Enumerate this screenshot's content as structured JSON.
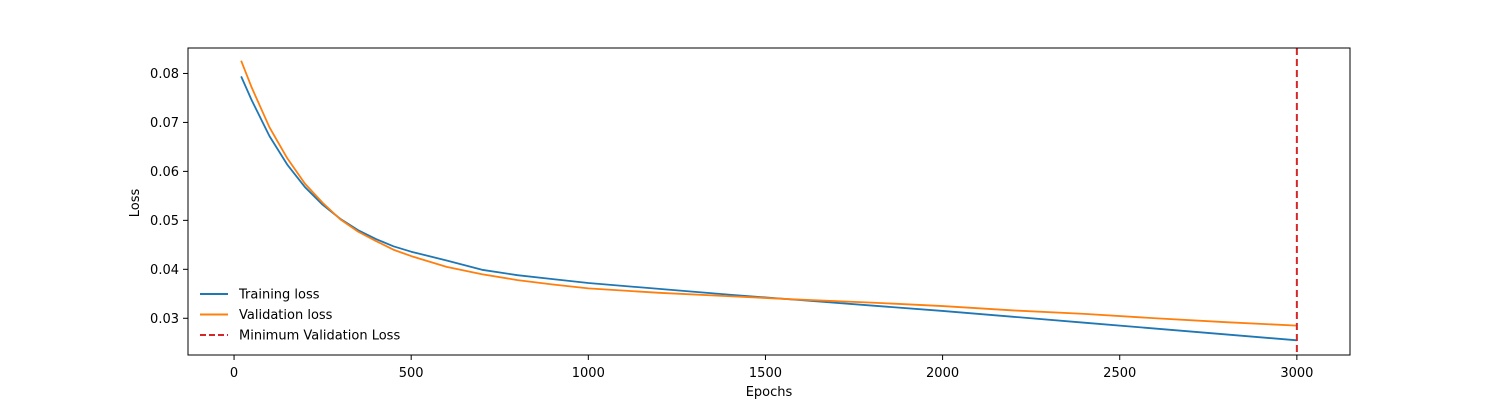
{
  "chart_data": {
    "type": "line",
    "title": "",
    "xlabel": "Epochs",
    "ylabel": "Loss",
    "xlim": [
      -130,
      3150
    ],
    "ylim": [
      0.0225,
      0.0852
    ],
    "x_ticks": [
      0,
      500,
      1000,
      1500,
      2000,
      2500,
      3000
    ],
    "y_ticks": [
      0.03,
      0.04,
      0.05,
      0.06,
      0.07,
      0.08
    ],
    "x_tick_labels": [
      "0",
      "500",
      "1000",
      "1500",
      "2000",
      "2500",
      "3000"
    ],
    "y_tick_labels": [
      "0.03",
      "0.04",
      "0.05",
      "0.06",
      "0.07",
      "0.08"
    ],
    "grid": false,
    "legend_position": "lower-left",
    "legend_frame": false,
    "series": [
      {
        "name": "Training loss",
        "color": "#1f77b4",
        "x": [
          20,
          50,
          100,
          150,
          200,
          250,
          300,
          350,
          400,
          450,
          500,
          600,
          700,
          800,
          900,
          1000,
          1200,
          1400,
          1600,
          1800,
          2000,
          2200,
          2400,
          2600,
          2800,
          3000
        ],
        "y": [
          0.0794,
          0.0745,
          0.0672,
          0.0614,
          0.0568,
          0.0532,
          0.0503,
          0.048,
          0.0462,
          0.0447,
          0.0436,
          0.0418,
          0.0399,
          0.0388,
          0.038,
          0.0372,
          0.036,
          0.0348,
          0.0337,
          0.0326,
          0.0315,
          0.0303,
          0.0291,
          0.0279,
          0.0267,
          0.0255
        ]
      },
      {
        "name": "Validation loss",
        "color": "#ff7f0e",
        "x": [
          20,
          50,
          100,
          150,
          200,
          250,
          300,
          350,
          400,
          450,
          500,
          600,
          700,
          800,
          900,
          1000,
          1200,
          1400,
          1600,
          1800,
          2000,
          2200,
          2400,
          2600,
          2800,
          3000
        ],
        "y": [
          0.0826,
          0.0771,
          0.069,
          0.0627,
          0.0575,
          0.0536,
          0.0502,
          0.0477,
          0.0458,
          0.044,
          0.0427,
          0.0405,
          0.039,
          0.0378,
          0.0369,
          0.0361,
          0.0352,
          0.0345,
          0.0338,
          0.0332,
          0.0325,
          0.0316,
          0.0309,
          0.03,
          0.0292,
          0.0285
        ]
      }
    ],
    "vlines": [
      {
        "name": "Minimum Validation Loss",
        "x": 3000,
        "color": "#d62728",
        "style": "dashed"
      }
    ]
  }
}
